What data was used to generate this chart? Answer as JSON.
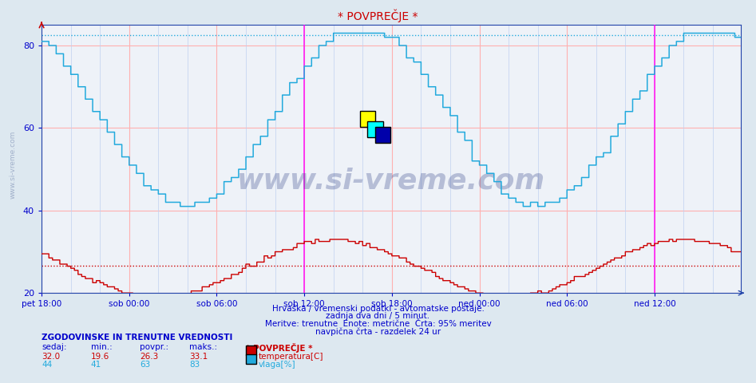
{
  "title": "* POVPREČJE *",
  "bg_color": "#dde8f0",
  "plot_bg_color": "#eef2f8",
  "grid_color_h": "#ffb0b0",
  "grid_color_v": "#c0d0f0",
  "title_color": "#cc0000",
  "xlabel_color": "#0000cc",
  "temp_color": "#cc0000",
  "humidity_color": "#22aadd",
  "ylim_min": 20,
  "ylim_max": 85,
  "yticks": [
    20,
    40,
    60,
    80
  ],
  "xticklabels": [
    "pet 18:00",
    "sob 00:00",
    "sob 06:00",
    "sob 12:00",
    "sob 18:00",
    "ned 00:00",
    "ned 06:00",
    "ned 12:00"
  ],
  "n_points": 576,
  "temp_min": 19.6,
  "temp_max": 33.1,
  "temp_avg": 26.3,
  "temp_current": 32.0,
  "hum_min": 41,
  "hum_max": 83,
  "hum_avg": 63,
  "hum_current": 44,
  "info_line1": "Hrvaška / vremenski podatki - avtomatske postaje.",
  "info_line2": "zadnja dva dni / 5 minut.",
  "info_line3": "Meritve: trenutne  Enote: metrične  Črta: 95% meritev",
  "info_line4": "navpična črta - razdelek 24 ur",
  "legend_title": "* POVPREČJE *",
  "legend_temp": "temperatura[C]",
  "legend_hum": "vlaga[%]",
  "table_header": "ZGODOVINSKE IN TRENUTNE VREDNOSTI",
  "col_sedaj": "sedaj:",
  "col_min": "min.:",
  "col_povpr": "povpr.:",
  "col_maks": "maks.:",
  "watermark": "www.si-vreme.com",
  "side_label": "www.si-vreme.com",
  "hum_dotted_color": "#22aadd",
  "temp_dotted_color": "#cc0000",
  "magenta_line_color": "#ff00ff",
  "spine_color": "#2244aa",
  "arrow_color": "#cc0000"
}
